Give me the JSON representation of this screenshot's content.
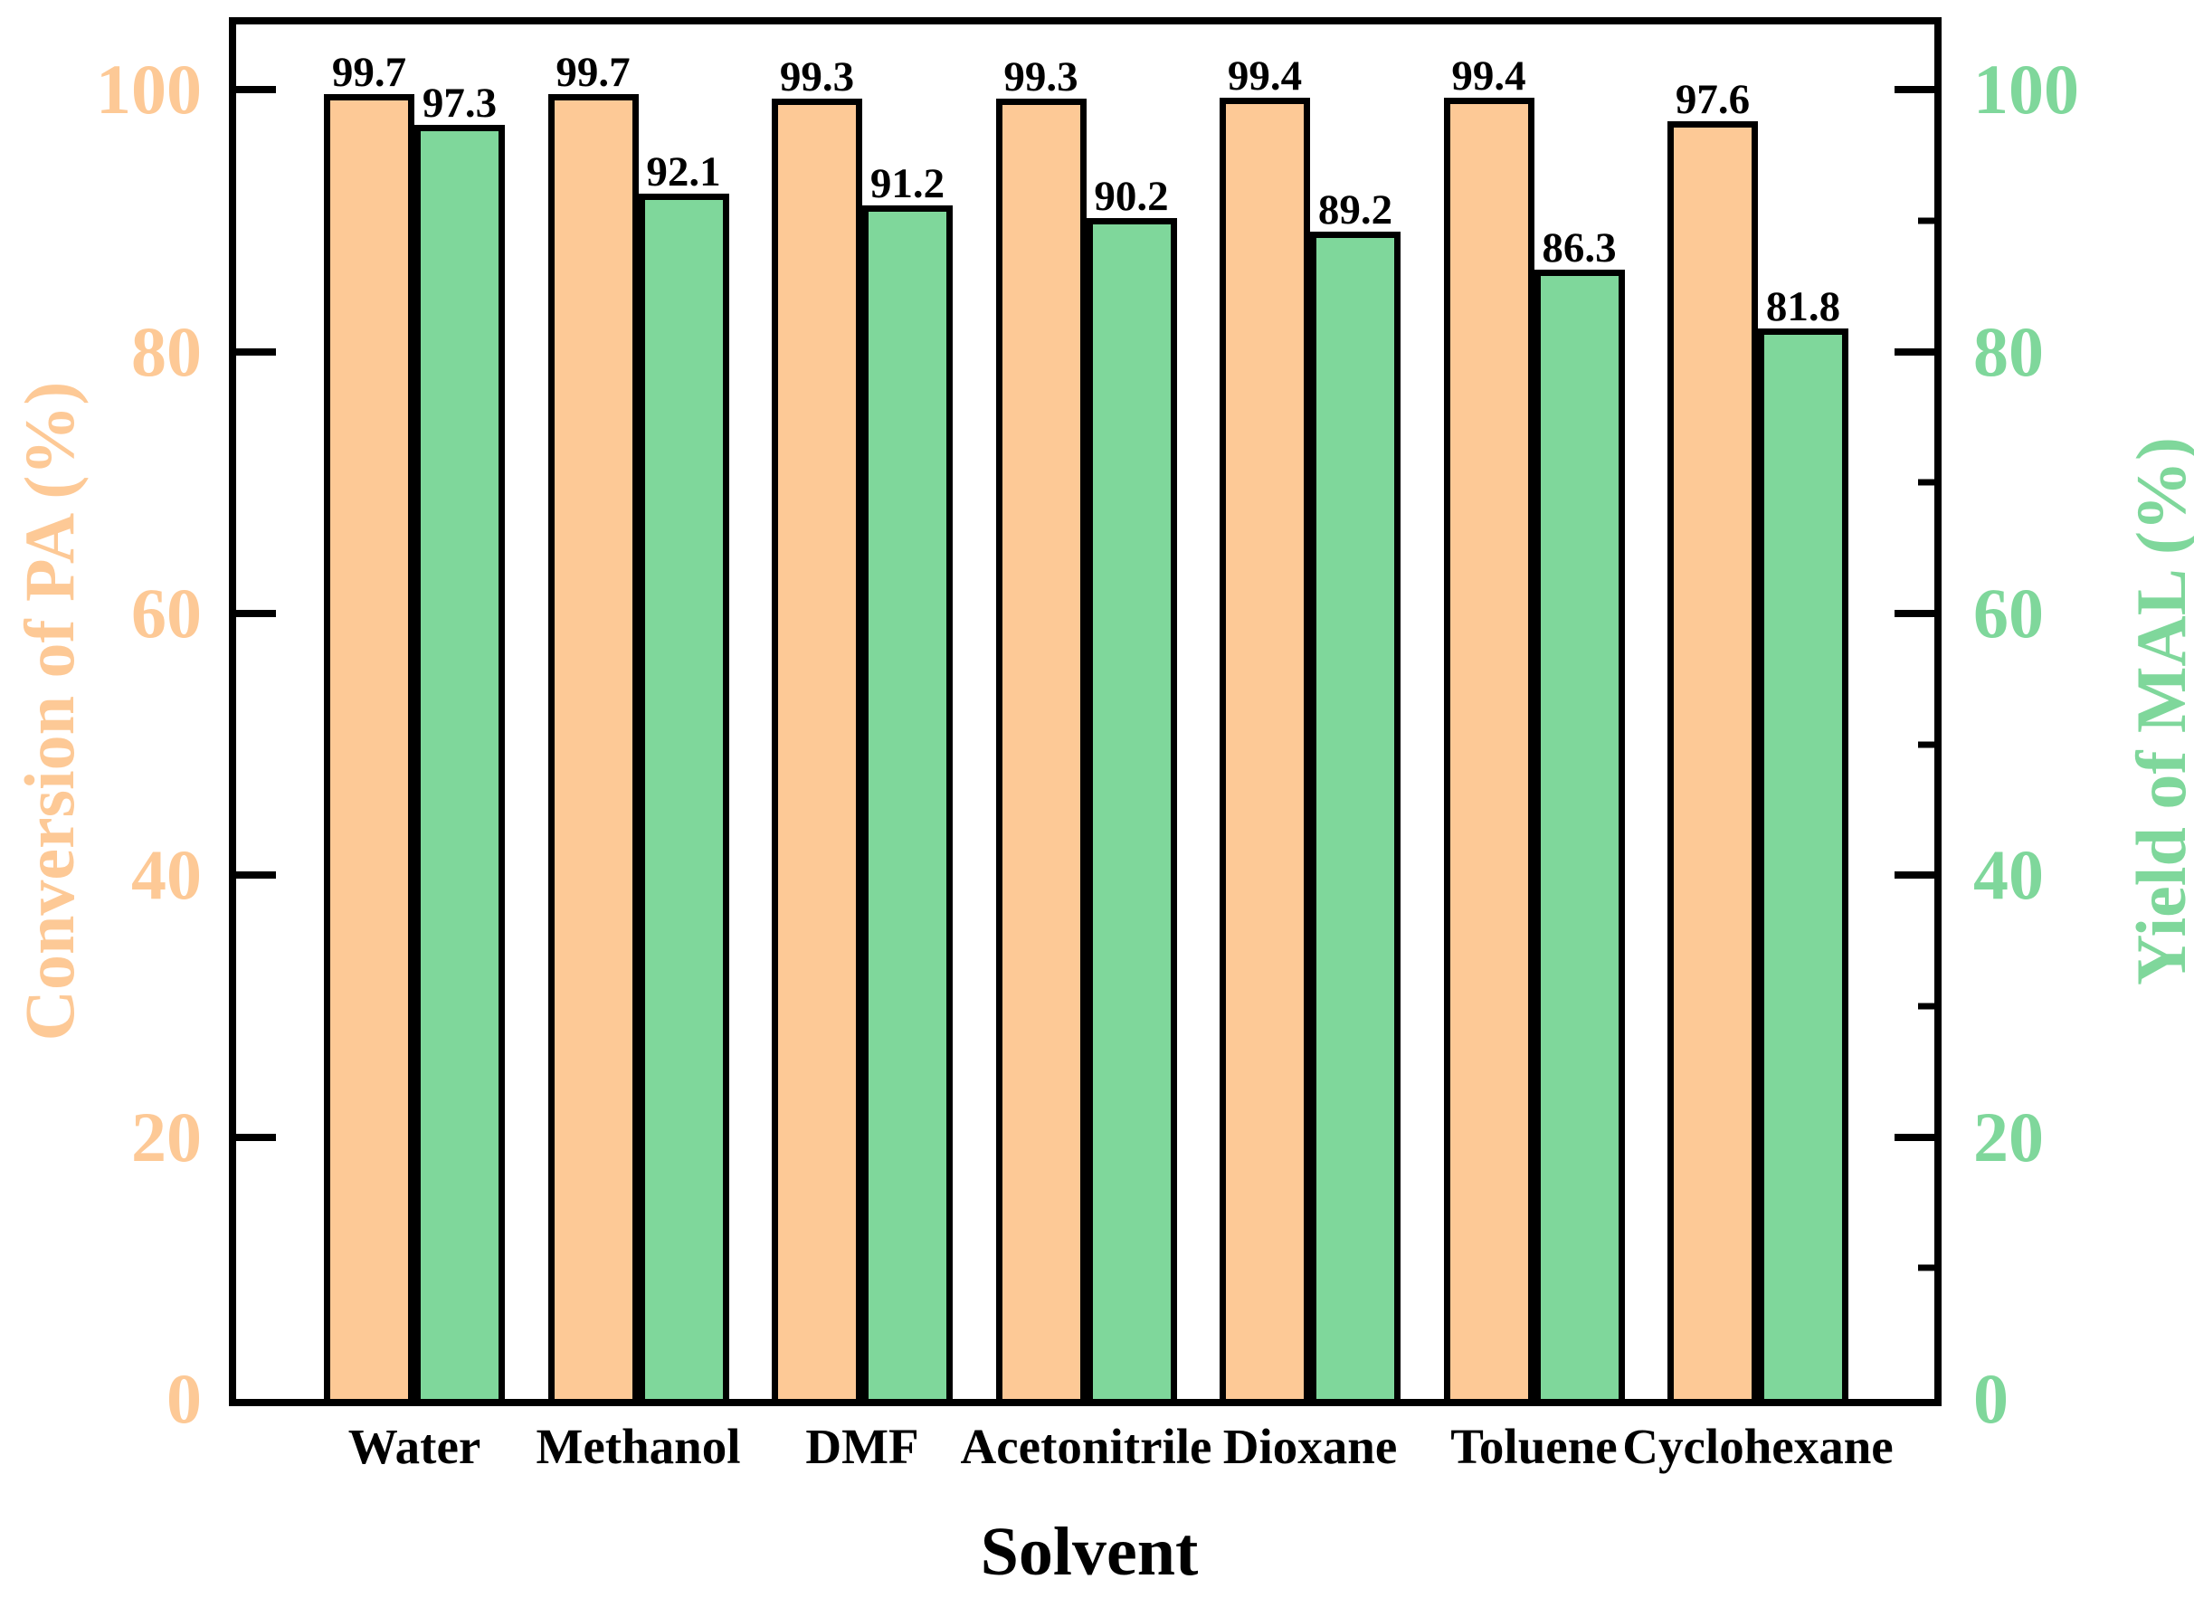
{
  "chart_data": {
    "type": "bar",
    "title": "",
    "xlabel": "Solvent",
    "ylabel_left": "Conversion of PA (%)",
    "ylabel_right": "Yield of MAL (%)",
    "categories": [
      "Water",
      "Methanol",
      "DMF",
      "Acetonitrile",
      "Dioxane",
      "Toluene",
      "Cyclohexane"
    ],
    "series": [
      {
        "name": "Conversion of PA (%)",
        "axis": "left",
        "color": "#fdc996",
        "values": [
          99.7,
          99.7,
          99.3,
          99.3,
          99.4,
          99.4,
          97.6
        ]
      },
      {
        "name": "Yield of MAL (%)",
        "axis": "right",
        "color": "#7fd79b",
        "values": [
          97.3,
          92.1,
          91.2,
          90.2,
          89.2,
          86.3,
          81.8
        ]
      }
    ],
    "ylim": [
      0,
      105
    ],
    "yticks": [
      0,
      20,
      40,
      60,
      80,
      100
    ],
    "yticks_minor_right": [
      10,
      30,
      50,
      70,
      90
    ],
    "bar_outline_color": "#000000",
    "grid": false,
    "legend": false
  }
}
